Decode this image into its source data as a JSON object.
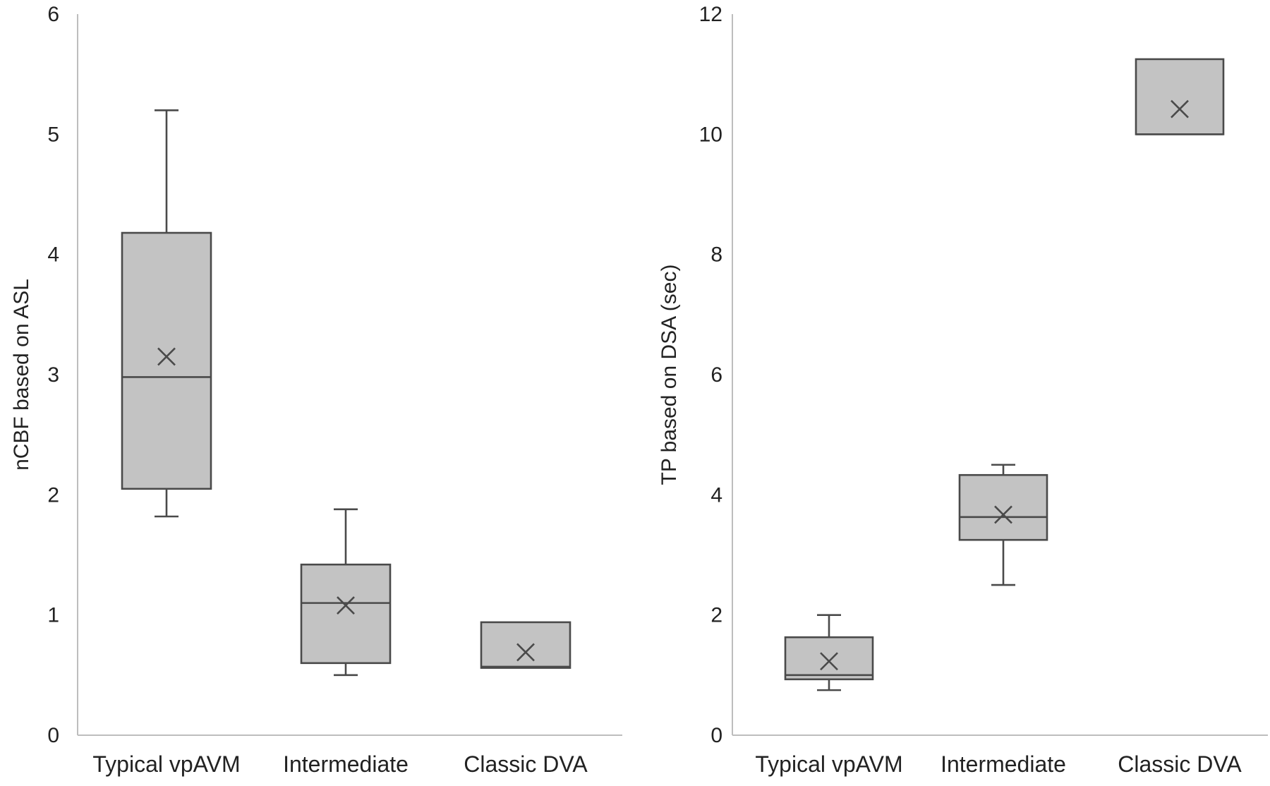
{
  "chart_data": [
    {
      "type": "box",
      "title": "",
      "xlabel": "",
      "ylabel": "nCBF based on ASL",
      "ylim": [
        0,
        6
      ],
      "yticks": [
        0,
        1,
        2,
        3,
        4,
        5,
        6
      ],
      "ytick_labels": [
        "0",
        "1",
        "2",
        "3",
        "4",
        "5",
        "6"
      ],
      "grid": false,
      "categories": [
        "Typical vpAVM",
        "Intermediate",
        "Classic DVA"
      ],
      "boxes": [
        {
          "name": "Typical vpAVM",
          "min": 1.82,
          "q1": 2.05,
          "median": 2.98,
          "q3": 4.18,
          "max": 5.2,
          "mean": 3.15
        },
        {
          "name": "Intermediate",
          "min": 0.5,
          "q1": 0.6,
          "median": 1.1,
          "q3": 1.42,
          "max": 1.88,
          "mean": 1.08
        },
        {
          "name": "Classic DVA",
          "min": 0.56,
          "q1": 0.56,
          "median": 0.57,
          "q3": 0.94,
          "max": 0.94,
          "mean": 0.69
        }
      ]
    },
    {
      "type": "box",
      "title": "",
      "xlabel": "",
      "ylabel": "TP based on DSA (sec)",
      "ylim": [
        0,
        12
      ],
      "yticks": [
        0,
        2,
        4,
        6,
        8,
        10,
        12
      ],
      "ytick_labels": [
        "0",
        "2",
        "4",
        "6",
        "8",
        "10",
        "12"
      ],
      "grid": false,
      "categories": [
        "Typical vpAVM",
        "Intermediate",
        "Classic DVA"
      ],
      "boxes": [
        {
          "name": "Typical vpAVM",
          "min": 0.75,
          "q1": 0.93,
          "median": 1.0,
          "q3": 1.63,
          "max": 2.0,
          "mean": 1.23
        },
        {
          "name": "Intermediate",
          "min": 2.5,
          "q1": 3.25,
          "median": 3.63,
          "q3": 4.33,
          "max": 4.5,
          "mean": 3.67
        },
        {
          "name": "Classic DVA",
          "min": 10.0,
          "q1": 10.0,
          "median": 10.0,
          "q3": 11.25,
          "max": 11.25,
          "mean": 10.42
        }
      ]
    }
  ],
  "colors": {
    "box_fill": "#c3c3c3",
    "stroke": "#4a4a4a",
    "axis": "#bdbdbd",
    "text": "#222222"
  }
}
